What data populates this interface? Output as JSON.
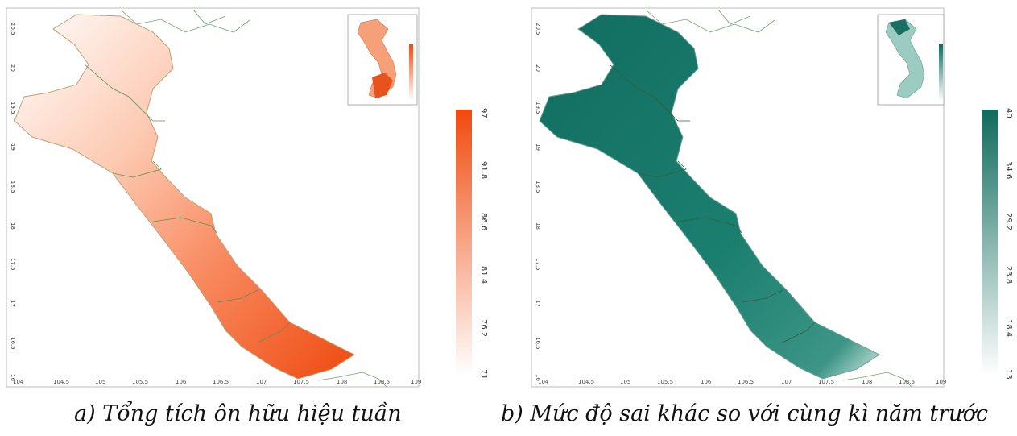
{
  "panels": [
    {
      "id": "a",
      "caption": "a) Tổng tích ôn hữu hiệu tuần",
      "colorbar": {
        "min_color": "#ffffff",
        "max_color": "#f04a0e",
        "ticks": [
          "97",
          "91.8",
          "86.6",
          "81.4",
          "76.2",
          "71"
        ]
      }
    },
    {
      "id": "b",
      "caption": "b) Mức độ sai khác so với cùng kì năm trước",
      "colorbar": {
        "min_color": "#ffffff",
        "max_color": "#0f6b5c",
        "ticks": [
          "40",
          "34.6",
          "29.2",
          "23.8",
          "18.4",
          "13"
        ]
      }
    }
  ],
  "axes": {
    "lon_ticks": [
      "104",
      "104.5",
      "105",
      "105.5",
      "106",
      "106.5",
      "107",
      "107.5",
      "108",
      "108.5",
      "109"
    ],
    "lat_ticks": [
      "20.5",
      "20",
      "19.5",
      "19",
      "18.5",
      "18",
      "17.5",
      "17",
      "16.5",
      "16"
    ]
  }
}
